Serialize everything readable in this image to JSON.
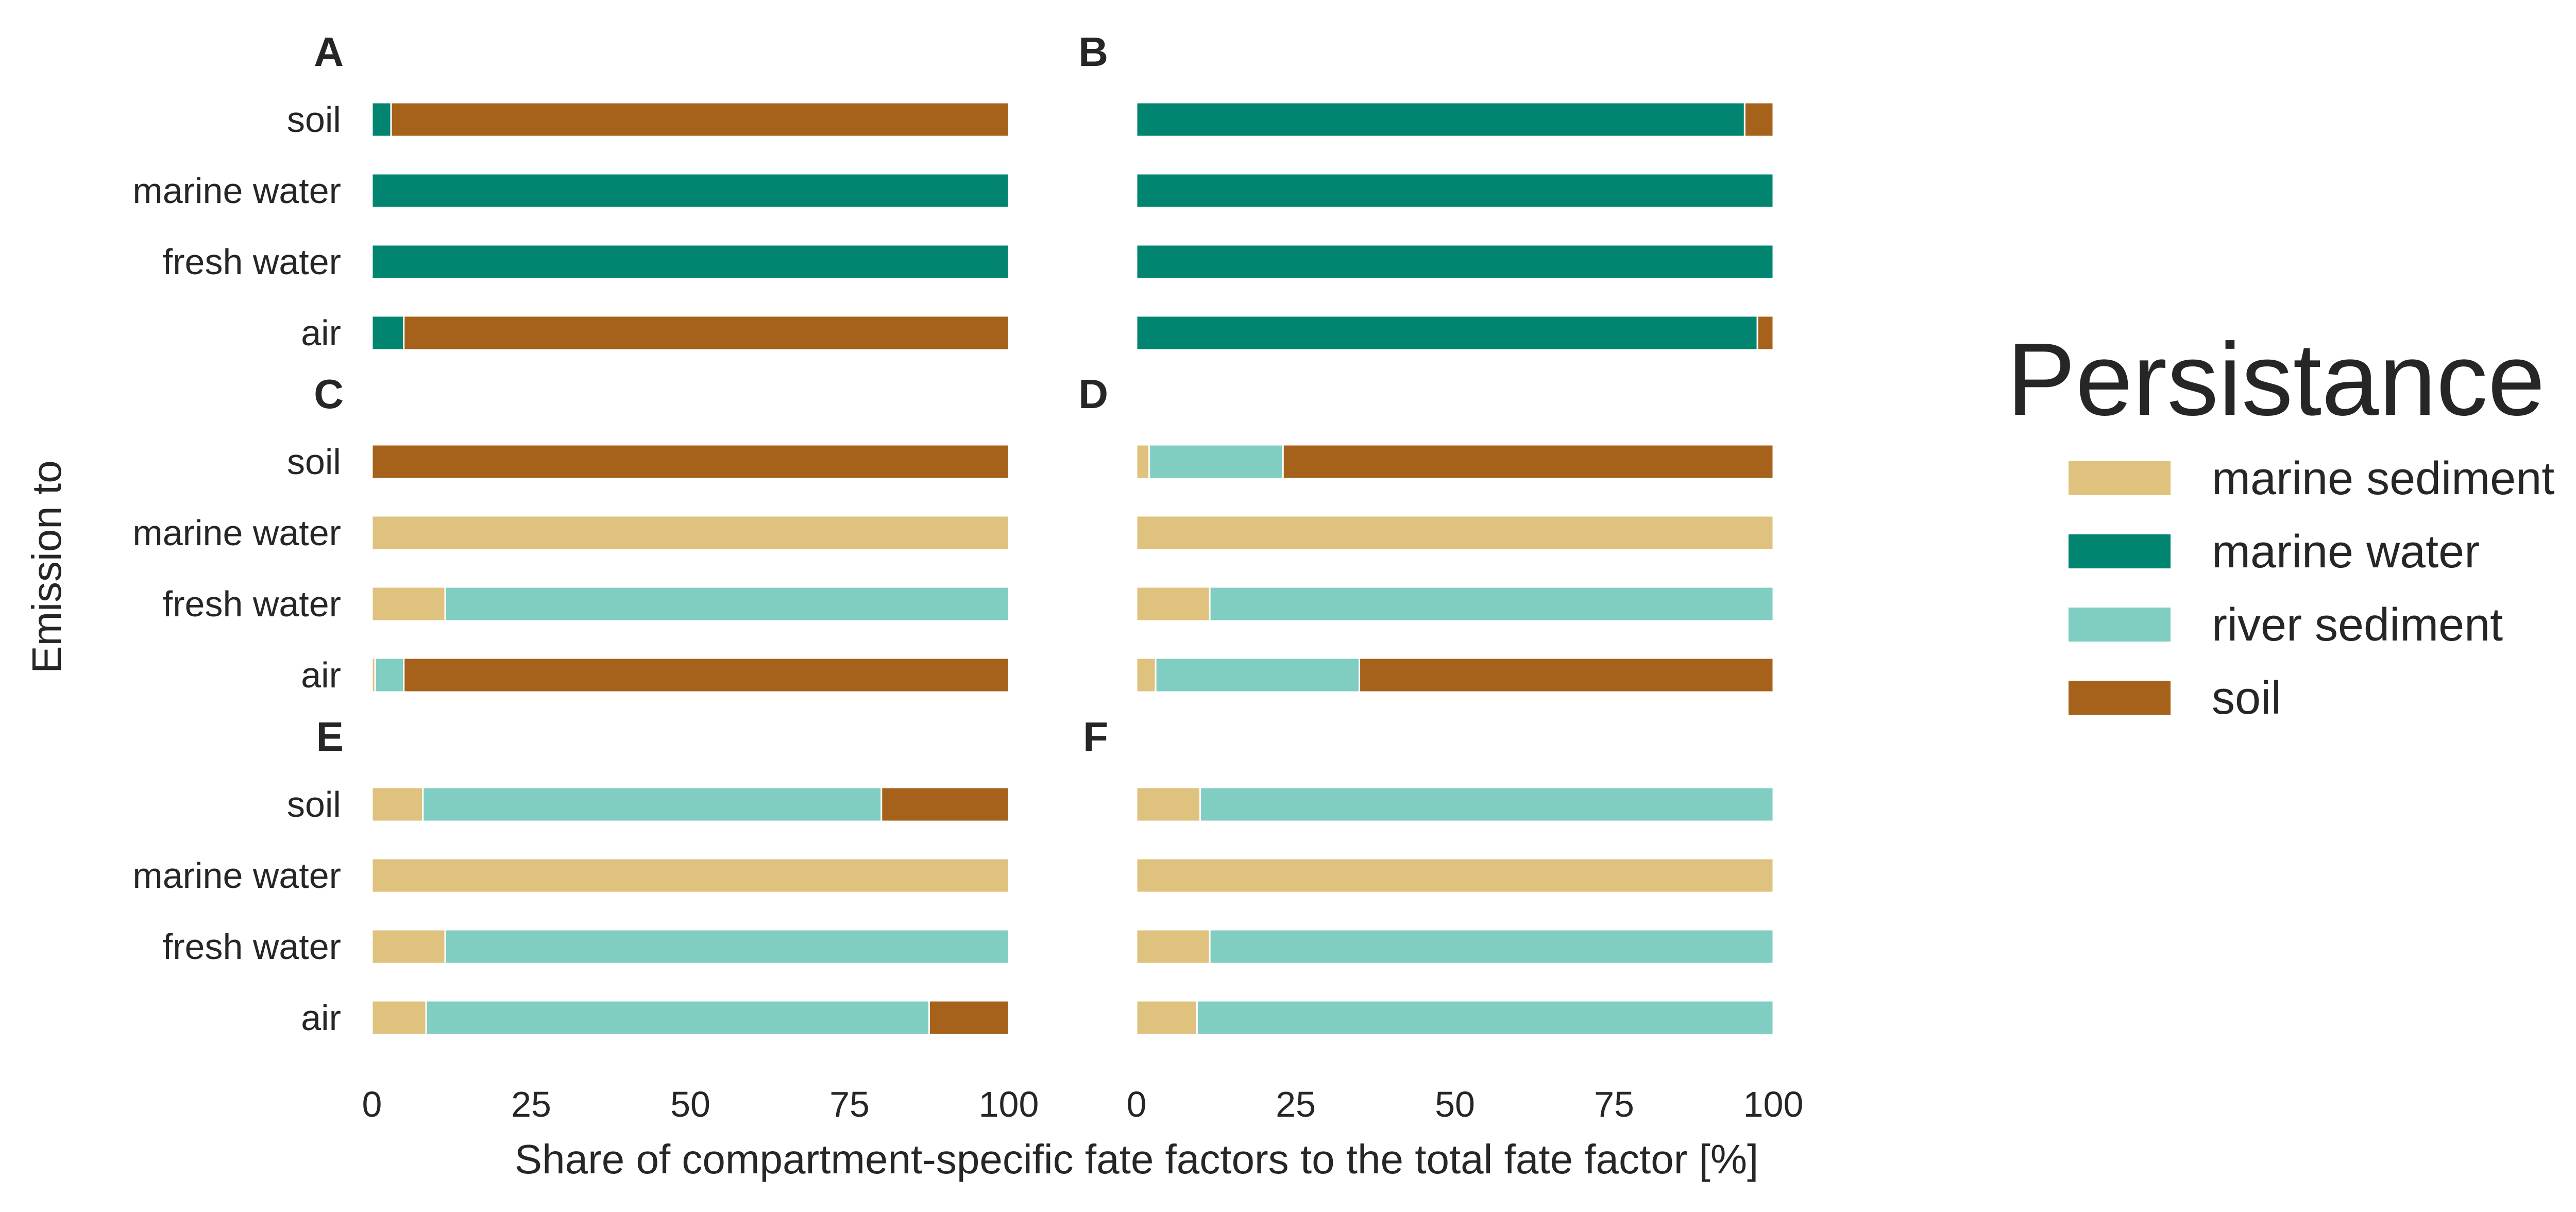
{
  "chart_data": {
    "type": "bar",
    "orientation": "horizontal",
    "stacked": true,
    "categories": [
      "soil",
      "marine water",
      "fresh water",
      "air"
    ],
    "xlabel": "Share of compartment-specific fate factors to the total fate factor [%]",
    "ylabel": "Emission to",
    "xlim": [
      0,
      100
    ],
    "xticks": [
      "0",
      "25",
      "50",
      "75",
      "100"
    ],
    "grid": false,
    "legend": {
      "title": "Persistance in",
      "placement": "right",
      "items": [
        {
          "name": "marine sediment",
          "color": "#DFC27D"
        },
        {
          "name": "marine water",
          "color": "#018571"
        },
        {
          "name": "river sediment",
          "color": "#80CDC1"
        },
        {
          "name": "soil",
          "color": "#A6611A"
        }
      ]
    },
    "series_order": [
      "marine sediment",
      "marine water",
      "river sediment",
      "soil"
    ],
    "panels": [
      {
        "label": "A",
        "bars": {
          "soil": {
            "marine sediment": 0,
            "marine water": 3,
            "river sediment": 0,
            "soil": 97
          },
          "marine water": {
            "marine sediment": 0,
            "marine water": 100,
            "river sediment": 0,
            "soil": 0
          },
          "fresh water": {
            "marine sediment": 0,
            "marine water": 100,
            "river sediment": 0,
            "soil": 0
          },
          "air": {
            "marine sediment": 0,
            "marine water": 5,
            "river sediment": 0,
            "soil": 95
          }
        }
      },
      {
        "label": "B",
        "bars": {
          "soil": {
            "marine sediment": 0,
            "marine water": 95.5,
            "river sediment": 0,
            "soil": 4.5
          },
          "marine water": {
            "marine sediment": 0,
            "marine water": 100,
            "river sediment": 0,
            "soil": 0
          },
          "fresh water": {
            "marine sediment": 0,
            "marine water": 100,
            "river sediment": 0,
            "soil": 0
          },
          "air": {
            "marine sediment": 0,
            "marine water": 97.5,
            "river sediment": 0,
            "soil": 2.5
          }
        }
      },
      {
        "label": "C",
        "bars": {
          "soil": {
            "marine sediment": 0,
            "marine water": 0,
            "river sediment": 0,
            "soil": 100
          },
          "marine water": {
            "marine sediment": 100,
            "marine water": 0,
            "river sediment": 0,
            "soil": 0
          },
          "fresh water": {
            "marine sediment": 11.5,
            "marine water": 0,
            "river sediment": 88.5,
            "soil": 0
          },
          "air": {
            "marine sediment": 0.5,
            "marine water": 0,
            "river sediment": 4.5,
            "soil": 95
          }
        }
      },
      {
        "label": "D",
        "bars": {
          "soil": {
            "marine sediment": 2,
            "marine water": 0,
            "river sediment": 21,
            "soil": 77
          },
          "marine water": {
            "marine sediment": 100,
            "marine water": 0,
            "river sediment": 0,
            "soil": 0
          },
          "fresh water": {
            "marine sediment": 11.5,
            "marine water": 0,
            "river sediment": 88.5,
            "soil": 0
          },
          "air": {
            "marine sediment": 3,
            "marine water": 0,
            "river sediment": 32,
            "soil": 65
          }
        }
      },
      {
        "label": "E",
        "bars": {
          "soil": {
            "marine sediment": 8,
            "marine water": 0,
            "river sediment": 72,
            "soil": 20
          },
          "marine water": {
            "marine sediment": 100,
            "marine water": 0,
            "river sediment": 0,
            "soil": 0
          },
          "fresh water": {
            "marine sediment": 11.5,
            "marine water": 0,
            "river sediment": 88.5,
            "soil": 0
          },
          "air": {
            "marine sediment": 8.5,
            "marine water": 0,
            "river sediment": 79,
            "soil": 12.5
          }
        }
      },
      {
        "label": "F",
        "bars": {
          "soil": {
            "marine sediment": 10,
            "marine water": 0,
            "river sediment": 90,
            "soil": 0
          },
          "marine water": {
            "marine sediment": 100,
            "marine water": 0,
            "river sediment": 0,
            "soil": 0
          },
          "fresh water": {
            "marine sediment": 11.5,
            "marine water": 0,
            "river sediment": 88.5,
            "soil": 0
          },
          "air": {
            "marine sediment": 9.5,
            "marine water": 0,
            "river sediment": 90.5,
            "soil": 0
          }
        }
      }
    ]
  }
}
